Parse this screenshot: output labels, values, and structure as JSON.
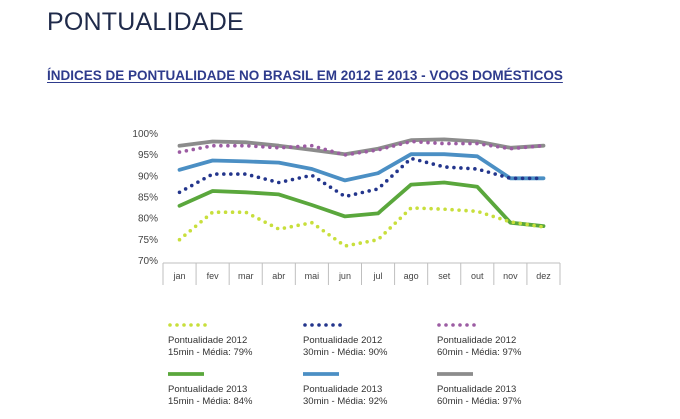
{
  "page": {
    "title": "PONTUALIDADE",
    "subtitle": "ÍNDICES DE PONTUALIDADE NO BRASIL EM 2012 E 2013 - VOOS DOMÉSTICOS"
  },
  "chart_data": {
    "type": "line",
    "categories": [
      "jan",
      "fev",
      "mar",
      "abr",
      "mai",
      "jun",
      "jul",
      "ago",
      "set",
      "out",
      "nov",
      "dez"
    ],
    "y_ticks": [
      "100%",
      "95%",
      "90%",
      "85%",
      "80%",
      "75%",
      "70%"
    ],
    "ylim": [
      70,
      100
    ],
    "grid": false,
    "legend_position": "bottom",
    "series": [
      {
        "name": "Pontualidade 2012",
        "sub": "15min - Média: 79%",
        "color": "#c8df3c",
        "style": "dotted",
        "values": [
          74.8,
          81.3,
          81.3,
          77.3,
          78.8,
          73.3,
          74.8,
          82.3,
          82.0,
          81.5,
          79.0,
          77.8
        ]
      },
      {
        "name": "Pontualidade 2012",
        "sub": "30min - Média: 90%",
        "color": "#23358c",
        "style": "dotted",
        "values": [
          86.0,
          90.3,
          90.3,
          88.3,
          90.0,
          85.0,
          86.8,
          94.0,
          92.0,
          91.5,
          89.3,
          89.3
        ]
      },
      {
        "name": "Pontualidade 2012",
        "sub": "60min - Média: 97%",
        "color": "#9c5ca3",
        "style": "dotted",
        "values": [
          95.5,
          97.0,
          97.0,
          96.5,
          97.0,
          94.8,
          96.0,
          98.0,
          97.5,
          97.5,
          96.3,
          97.0
        ]
      },
      {
        "name": "Pontualidade 2013",
        "sub": "15min - Média: 84%",
        "color": "#5aa73c",
        "style": "solid",
        "values": [
          82.8,
          86.3,
          86.0,
          85.5,
          83.0,
          80.3,
          81.0,
          87.8,
          88.3,
          87.3,
          78.8,
          78.0
        ]
      },
      {
        "name": "Pontualidade 2013",
        "sub": "30min - Média: 92%",
        "color": "#4b8fc4",
        "style": "solid",
        "values": [
          91.3,
          93.5,
          93.3,
          93.0,
          91.5,
          88.8,
          90.5,
          95.0,
          95.0,
          94.5,
          89.3,
          89.3
        ]
      },
      {
        "name": "Pontualidade 2013",
        "sub": "60min - Média: 97%",
        "color": "#8c8c8c",
        "style": "solid",
        "values": [
          97.0,
          98.0,
          97.8,
          97.0,
          96.0,
          95.0,
          96.3,
          98.3,
          98.5,
          98.0,
          96.5,
          97.0
        ]
      }
    ]
  }
}
